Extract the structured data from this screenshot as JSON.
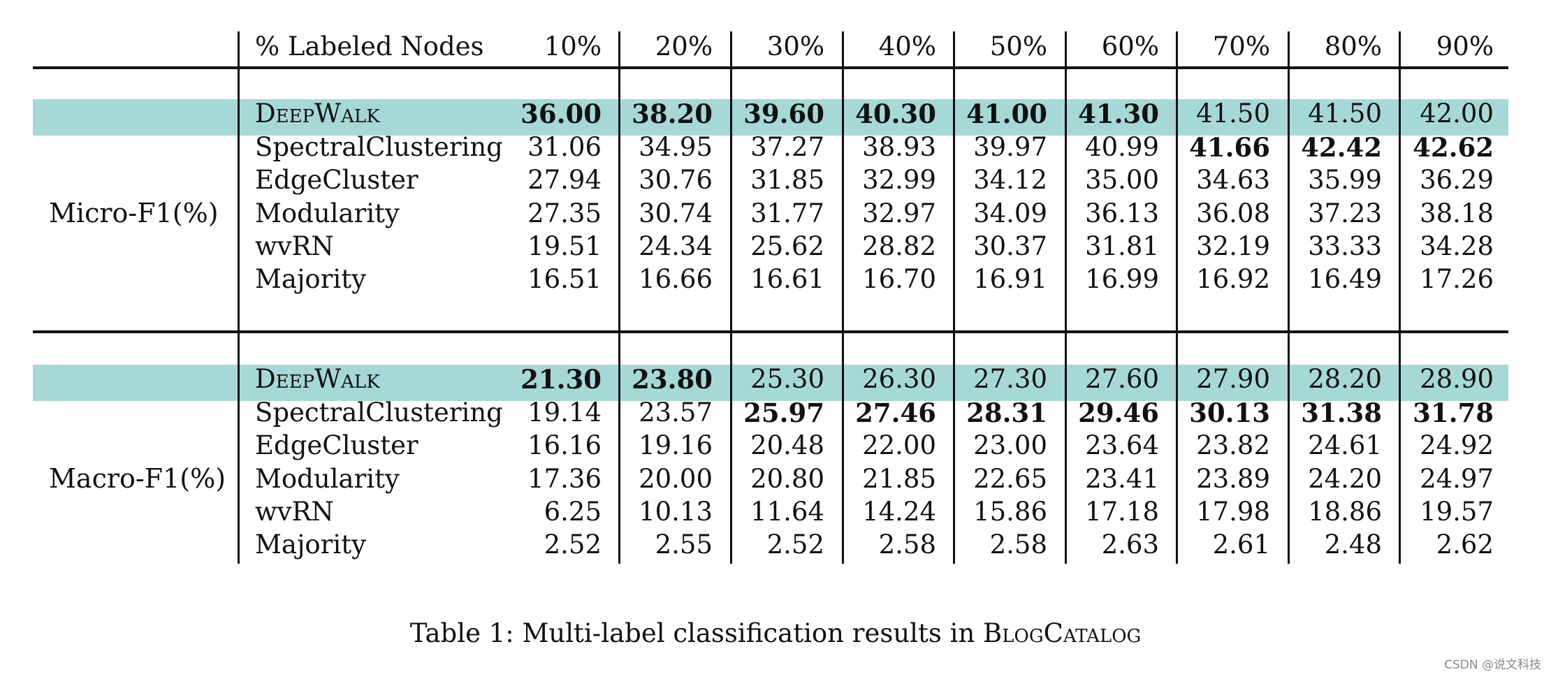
{
  "table": {
    "header": {
      "label": "% Labeled Nodes",
      "columns": [
        "10%",
        "20%",
        "30%",
        "40%",
        "50%",
        "60%",
        "70%",
        "80%",
        "90%"
      ]
    },
    "sections": [
      {
        "metric": "Micro-F1(%)",
        "rows": [
          {
            "method": "DeepWalk",
            "small_caps": true,
            "highlight": true,
            "values": [
              "36.00",
              "38.20",
              "39.60",
              "40.30",
              "41.00",
              "41.30",
              "41.50",
              "41.50",
              "42.00"
            ],
            "bold": [
              true,
              true,
              true,
              true,
              true,
              true,
              false,
              false,
              false
            ]
          },
          {
            "method": "SpectralClustering",
            "small_caps": false,
            "highlight": false,
            "values": [
              "31.06",
              "34.95",
              "37.27",
              "38.93",
              "39.97",
              "40.99",
              "41.66",
              "42.42",
              "42.62"
            ],
            "bold": [
              false,
              false,
              false,
              false,
              false,
              false,
              true,
              true,
              true
            ]
          },
          {
            "method": "EdgeCluster",
            "small_caps": false,
            "highlight": false,
            "values": [
              "27.94",
              "30.76",
              "31.85",
              "32.99",
              "34.12",
              "35.00",
              "34.63",
              "35.99",
              "36.29"
            ],
            "bold": [
              false,
              false,
              false,
              false,
              false,
              false,
              false,
              false,
              false
            ]
          },
          {
            "method": "Modularity",
            "small_caps": false,
            "highlight": false,
            "values": [
              "27.35",
              "30.74",
              "31.77",
              "32.97",
              "34.09",
              "36.13",
              "36.08",
              "37.23",
              "38.18"
            ],
            "bold": [
              false,
              false,
              false,
              false,
              false,
              false,
              false,
              false,
              false
            ]
          },
          {
            "method": "wvRN",
            "small_caps": false,
            "highlight": false,
            "values": [
              "19.51",
              "24.34",
              "25.62",
              "28.82",
              "30.37",
              "31.81",
              "32.19",
              "33.33",
              "34.28"
            ],
            "bold": [
              false,
              false,
              false,
              false,
              false,
              false,
              false,
              false,
              false
            ]
          },
          {
            "method": "Majority",
            "small_caps": false,
            "highlight": false,
            "values": [
              "16.51",
              "16.66",
              "16.61",
              "16.70",
              "16.91",
              "16.99",
              "16.92",
              "16.49",
              "17.26"
            ],
            "bold": [
              false,
              false,
              false,
              false,
              false,
              false,
              false,
              false,
              false
            ]
          }
        ]
      },
      {
        "metric": "Macro-F1(%)",
        "rows": [
          {
            "method": "DeepWalk",
            "small_caps": true,
            "highlight": true,
            "values": [
              "21.30",
              "23.80",
              "25.30",
              "26.30",
              "27.30",
              "27.60",
              "27.90",
              "28.20",
              "28.90"
            ],
            "bold": [
              true,
              true,
              false,
              false,
              false,
              false,
              false,
              false,
              false
            ]
          },
          {
            "method": "SpectralClustering",
            "small_caps": false,
            "highlight": false,
            "values": [
              "19.14",
              "23.57",
              "25.97",
              "27.46",
              "28.31",
              "29.46",
              "30.13",
              "31.38",
              "31.78"
            ],
            "bold": [
              false,
              false,
              true,
              true,
              true,
              true,
              true,
              true,
              true
            ]
          },
          {
            "method": "EdgeCluster",
            "small_caps": false,
            "highlight": false,
            "values": [
              "16.16",
              "19.16",
              "20.48",
              "22.00",
              "23.00",
              "23.64",
              "23.82",
              "24.61",
              "24.92"
            ],
            "bold": [
              false,
              false,
              false,
              false,
              false,
              false,
              false,
              false,
              false
            ]
          },
          {
            "method": "Modularity",
            "small_caps": false,
            "highlight": false,
            "values": [
              "17.36",
              "20.00",
              "20.80",
              "21.85",
              "22.65",
              "23.41",
              "23.89",
              "24.20",
              "24.97"
            ],
            "bold": [
              false,
              false,
              false,
              false,
              false,
              false,
              false,
              false,
              false
            ]
          },
          {
            "method": "wvRN",
            "small_caps": false,
            "highlight": false,
            "values": [
              "6.25",
              "10.13",
              "11.64",
              "14.24",
              "15.86",
              "17.18",
              "17.98",
              "18.86",
              "19.57"
            ],
            "bold": [
              false,
              false,
              false,
              false,
              false,
              false,
              false,
              false,
              false
            ]
          },
          {
            "method": "Majority",
            "small_caps": false,
            "highlight": false,
            "values": [
              "2.52",
              "2.55",
              "2.52",
              "2.58",
              "2.58",
              "2.63",
              "2.61",
              "2.48",
              "2.62"
            ],
            "bold": [
              false,
              false,
              false,
              false,
              false,
              false,
              false,
              false,
              false
            ]
          }
        ]
      }
    ]
  },
  "caption": {
    "prefix": "Table 1: Multi-label classification results in ",
    "dataset": "BlogCatalog"
  },
  "watermark": "CSDN @说文科技"
}
